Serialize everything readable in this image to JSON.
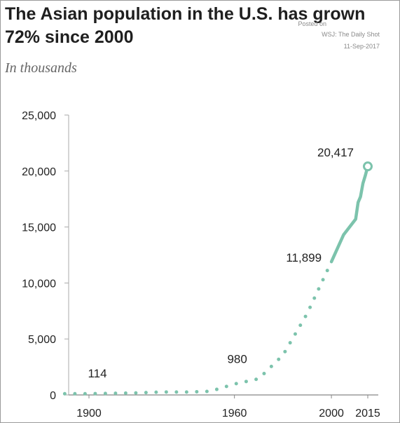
{
  "title": "The Asian population in the U.S. has grown 72% since 2000",
  "subtitle": "In thousands",
  "source": {
    "line1": "Posted on",
    "line2": "WSJ: The Daily Shot",
    "line3": "11-Sep-2017"
  },
  "colors": {
    "series": "#7cc3ac",
    "axis": "#aaaaaa",
    "grid": "#888888",
    "text": "#222222"
  },
  "chart_data": {
    "type": "line",
    "title": "The Asian population in the U.S. has grown 72% since 2000",
    "subtitle": "In thousands",
    "xlabel": "",
    "ylabel": "",
    "xlim": [
      1900,
      2015
    ],
    "ylim": [
      0,
      25000
    ],
    "x_ticks": [
      1900,
      1960,
      2000,
      2015
    ],
    "y_ticks": [
      0,
      5000,
      10000,
      15000,
      20000,
      25000
    ],
    "y_tick_labels": [
      "0",
      "5,000",
      "10,000",
      "15,000",
      "20,000",
      "25,000"
    ],
    "grid": false,
    "legend": "none",
    "series": [
      {
        "style": "dotted",
        "x": [
          1890,
          1900,
          1910,
          1920,
          1930,
          1940,
          1950,
          1960,
          1970,
          1980,
          1990,
          2000
        ],
        "values": [
          108,
          114,
          146,
          182,
          265,
          255,
          321,
          980,
          1439,
          3550,
          7274,
          11899
        ]
      },
      {
        "style": "solid",
        "x": [
          2000,
          2005,
          2010,
          2011,
          2012,
          2013,
          2014,
          2015
        ],
        "values": [
          11899,
          14300,
          15700,
          17200,
          17700,
          18900,
          19600,
          20417
        ]
      }
    ],
    "annotations": [
      {
        "label": "114",
        "x": 1900,
        "y": 114
      },
      {
        "label": "980",
        "x": 1960,
        "y": 980
      },
      {
        "label": "11,899",
        "x": 2000,
        "y": 11899
      },
      {
        "label": "20,417",
        "x": 2015,
        "y": 20417
      }
    ]
  }
}
